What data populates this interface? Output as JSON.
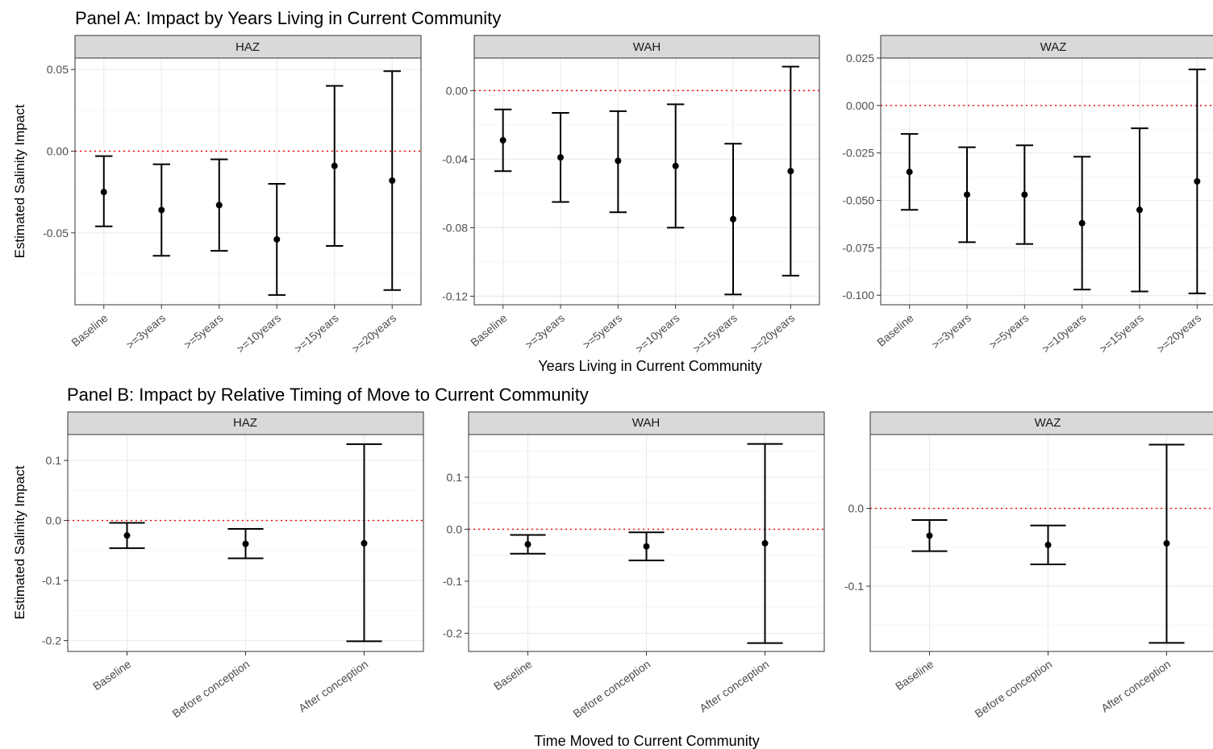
{
  "figure": {
    "panels": [
      {
        "title": "Panel A: Impact by Years Living in Current Community",
        "ylabel": "Estimated Salinity Impact",
        "xlabel": "Years Living in Current Community",
        "facets": [
          {
            "strip": "HAZ",
            "chart_data": {
              "type": "scatter",
              "categories": [
                "Baseline",
                ">=3years",
                ">=5years",
                ">=10years",
                ">=15years",
                ">=20years"
              ],
              "estimates": [
                -0.025,
                -0.036,
                -0.033,
                -0.054,
                -0.009,
                -0.018
              ],
              "lower": [
                -0.046,
                -0.064,
                -0.061,
                -0.088,
                -0.058,
                -0.085
              ],
              "upper": [
                -0.003,
                -0.008,
                -0.005,
                -0.02,
                0.04,
                0.049
              ],
              "ylim": [
                -0.094,
                0.057
              ],
              "yticks": [
                0.05,
                0.0,
                -0.05
              ],
              "ytick_labels": [
                "0.05",
                "0.00",
                "-0.05"
              ],
              "reference_line": 0,
              "grid": true
            }
          },
          {
            "strip": "WAH",
            "chart_data": {
              "type": "scatter",
              "categories": [
                "Baseline",
                ">=3years",
                ">=5years",
                ">=10years",
                ">=15years",
                ">=20years"
              ],
              "estimates": [
                -0.029,
                -0.039,
                -0.041,
                -0.044,
                -0.075,
                -0.047
              ],
              "lower": [
                -0.047,
                -0.065,
                -0.071,
                -0.08,
                -0.119,
                -0.108
              ],
              "upper": [
                -0.011,
                -0.013,
                -0.012,
                -0.008,
                -0.031,
                0.014
              ],
              "ylim": [
                -0.125,
                0.019
              ],
              "yticks": [
                0.0,
                -0.04,
                -0.08,
                -0.12
              ],
              "ytick_labels": [
                "0.00",
                "-0.04",
                "-0.08",
                "-0.12"
              ],
              "reference_line": 0,
              "grid": true
            }
          },
          {
            "strip": "WAZ",
            "chart_data": {
              "type": "scatter",
              "categories": [
                "Baseline",
                ">=3years",
                ">=5years",
                ">=10years",
                ">=15years",
                ">=20years"
              ],
              "estimates": [
                -0.035,
                -0.047,
                -0.047,
                -0.062,
                -0.055,
                -0.04
              ],
              "lower": [
                -0.055,
                -0.072,
                -0.073,
                -0.097,
                -0.098,
                -0.099
              ],
              "upper": [
                -0.015,
                -0.022,
                -0.021,
                -0.027,
                -0.012,
                0.019
              ],
              "ylim": [
                -0.105,
                0.025
              ],
              "yticks": [
                0.025,
                0.0,
                -0.025,
                -0.05,
                -0.075,
                -0.1
              ],
              "ytick_labels": [
                "0.025",
                "0.000",
                "-0.025",
                "-0.050",
                "-0.075",
                "-0.100"
              ],
              "reference_line": 0,
              "grid": true
            }
          }
        ]
      },
      {
        "title": "Panel B: Impact by Relative Timing of Move to Current Community",
        "ylabel": "Estimated Salinity Impact",
        "xlabel": "Time Moved to Current Community",
        "facets": [
          {
            "strip": "HAZ",
            "chart_data": {
              "type": "scatter",
              "categories": [
                "Baseline",
                "Before conception",
                "After conception"
              ],
              "estimates": [
                -0.025,
                -0.039,
                -0.038
              ],
              "lower": [
                -0.046,
                -0.063,
                -0.201
              ],
              "upper": [
                -0.004,
                -0.014,
                0.127
              ],
              "ylim": [
                -0.218,
                0.143
              ],
              "yticks": [
                0.1,
                0.0,
                -0.1,
                -0.2
              ],
              "ytick_labels": [
                "0.1",
                "0.0",
                "-0.1",
                "-0.2"
              ],
              "reference_line": 0,
              "grid": true
            }
          },
          {
            "strip": "WAH",
            "chart_data": {
              "type": "scatter",
              "categories": [
                "Baseline",
                "Before conception",
                "After conception"
              ],
              "estimates": [
                -0.029,
                -0.033,
                -0.027
              ],
              "lower": [
                -0.047,
                -0.06,
                -0.219
              ],
              "upper": [
                -0.011,
                -0.006,
                0.164
              ],
              "ylim": [
                -0.235,
                0.182
              ],
              "yticks": [
                0.1,
                0.0,
                -0.1,
                -0.2
              ],
              "ytick_labels": [
                "0.1",
                "0.0",
                "-0.1",
                "-0.2"
              ],
              "reference_line": 0,
              "grid": true
            }
          },
          {
            "strip": "WAZ",
            "chart_data": {
              "type": "scatter",
              "categories": [
                "Baseline",
                "Before conception",
                "After conception"
              ],
              "estimates": [
                -0.035,
                -0.047,
                -0.045
              ],
              "lower": [
                -0.055,
                -0.072,
                -0.173
              ],
              "upper": [
                -0.015,
                -0.022,
                0.082
              ],
              "ylim": [
                -0.184,
                0.095
              ],
              "yticks": [
                0.0,
                -0.1
              ],
              "ytick_labels": [
                "0.0",
                "-0.1"
              ],
              "reference_line": 0,
              "grid": true
            }
          }
        ]
      }
    ],
    "colors": {
      "strip_fill": "#d9d9d9",
      "panel_border": "#333333",
      "grid_major": "#ebebeb",
      "grid_minor": "#f5f5f5",
      "reference_line": "#ff0000",
      "marks": "#000000"
    }
  }
}
